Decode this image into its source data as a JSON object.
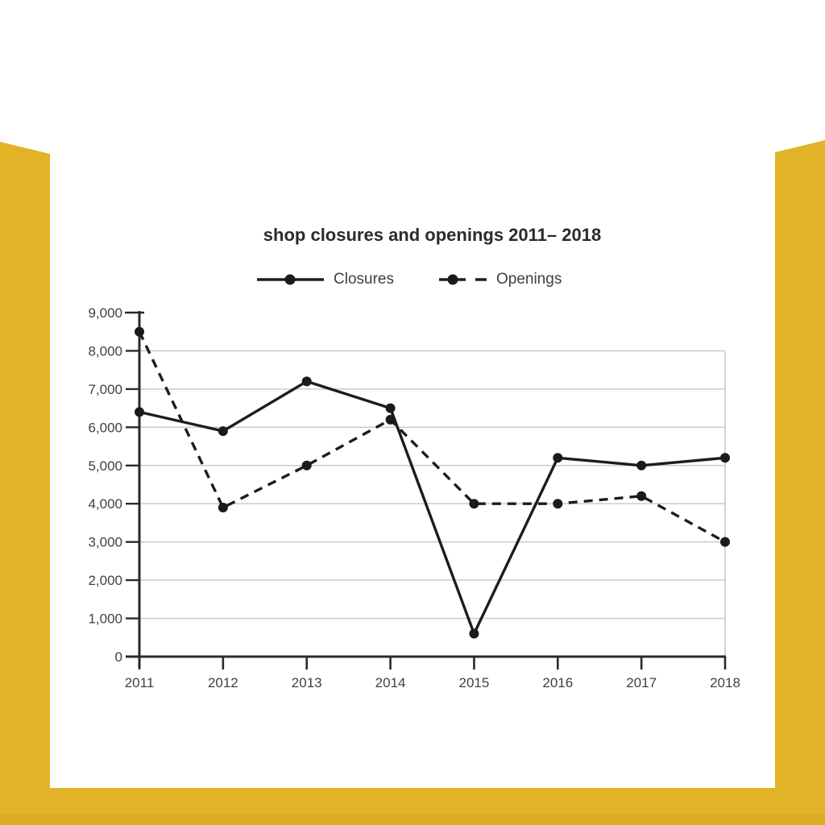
{
  "page": {
    "background_color": "#ffffff",
    "accent_yellow": "#e2b327",
    "card_color": "#ffffff"
  },
  "chart_data": {
    "type": "line",
    "title": "shop closures and openings 2011– 2018",
    "categories": [
      "2011",
      "2012",
      "2013",
      "2014",
      "2015",
      "2016",
      "2017",
      "2018"
    ],
    "series": [
      {
        "name": "Closures",
        "style": "solid",
        "values": [
          6400,
          5900,
          7200,
          6500,
          600,
          5200,
          5000,
          5200
        ]
      },
      {
        "name": "Openings",
        "style": "dashed",
        "values": [
          8500,
          3900,
          5000,
          6200,
          4000,
          4000,
          4200,
          3000
        ]
      }
    ],
    "xlabel": "",
    "ylabel": "",
    "ylim": [
      0,
      9000
    ],
    "ytick_step": 1000,
    "ytick_labels": [
      "0",
      "1,000",
      "2,000",
      "3,000",
      "4,000",
      "5,000",
      "6,000",
      "7,000",
      "8,000",
      "9,000"
    ],
    "grid": true,
    "legend_position": "top",
    "colors": {
      "line": "#1d1d1d",
      "marker": "#1b1b1b",
      "grid": "#c7c7c7",
      "axis": "#2a2a2a",
      "tick_text": "#414141",
      "title_text": "#2b2b2b",
      "legend_text": "#3f3f3f"
    }
  }
}
